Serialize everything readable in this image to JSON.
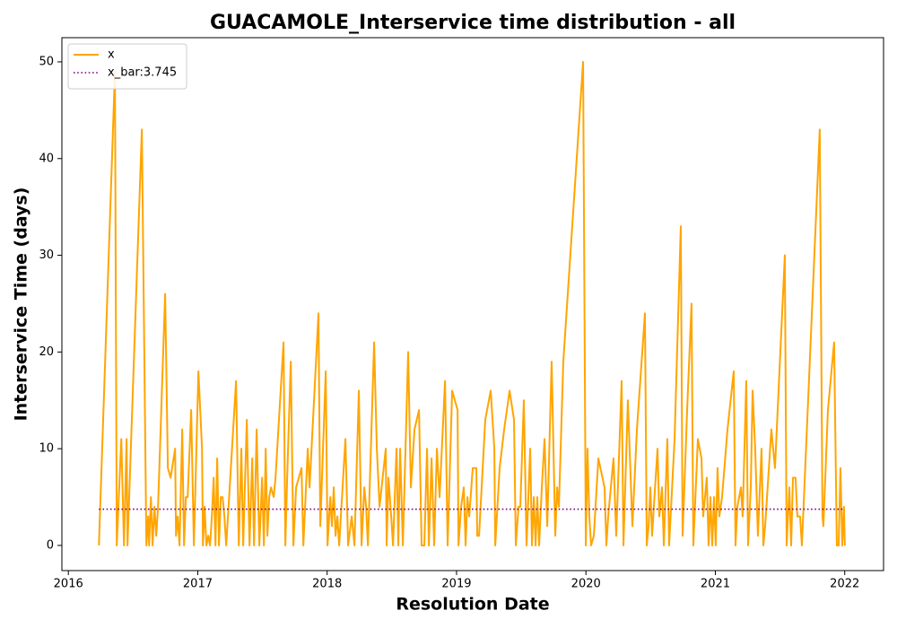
{
  "chart_data": {
    "type": "line",
    "title": "GUACAMOLE_Interservice time distribution - all",
    "x_label": "Resolution Date",
    "y_label": "Interservice Time (days)",
    "xlim": [
      2015.95,
      2022.3
    ],
    "ylim": [
      -2.6,
      52.5
    ],
    "xticks": [
      2016,
      2017,
      2018,
      2019,
      2020,
      2021,
      2022
    ],
    "yticks": [
      0,
      10,
      20,
      30,
      40,
      50
    ],
    "grid": false,
    "legend": "upper left",
    "series": [
      {
        "name": "x",
        "color": "#ffa500",
        "style": "solid",
        "x": [
          2016.236,
          2016.36,
          2016.374,
          2016.409,
          2016.43,
          2016.45,
          2016.457,
          2016.568,
          2016.603,
          2016.617,
          2016.624,
          2016.638,
          2016.651,
          2016.665,
          2016.679,
          2016.693,
          2016.748,
          2016.769,
          2016.79,
          2016.825,
          2016.832,
          2016.845,
          2016.859,
          2016.88,
          2016.894,
          2016.908,
          2016.922,
          2016.949,
          2016.97,
          2017.005,
          2017.033,
          2017.04,
          2017.053,
          2017.067,
          2017.081,
          2017.095,
          2017.109,
          2017.123,
          2017.137,
          2017.15,
          2017.164,
          2017.178,
          2017.192,
          2017.206,
          2017.22,
          2017.296,
          2017.317,
          2017.337,
          2017.351,
          2017.379,
          2017.4,
          2017.421,
          2017.435,
          2017.455,
          2017.476,
          2017.497,
          2017.511,
          2017.525,
          2017.538,
          2017.552,
          2017.566,
          2017.587,
          2017.601,
          2017.663,
          2017.677,
          2017.691,
          2017.719,
          2017.739,
          2017.76,
          2017.802,
          2017.816,
          2017.85,
          2017.864,
          2017.933,
          2017.947,
          2017.989,
          2018.003,
          2018.024,
          2018.037,
          2018.051,
          2018.065,
          2018.079,
          2018.093,
          2018.141,
          2018.162,
          2018.19,
          2018.211,
          2018.245,
          2018.266,
          2018.287,
          2018.301,
          2018.315,
          2018.363,
          2018.384,
          2018.405,
          2018.453,
          2018.46,
          2018.474,
          2018.495,
          2018.509,
          2018.536,
          2018.55,
          2018.564,
          2018.585,
          2018.626,
          2018.647,
          2018.675,
          2018.71,
          2018.73,
          2018.751,
          2018.772,
          2018.786,
          2018.807,
          2018.827,
          2018.848,
          2018.869,
          2018.911,
          2018.931,
          2018.966,
          2019.008,
          2019.015,
          2019.035,
          2019.056,
          2019.07,
          2019.084,
          2019.098,
          2019.125,
          2019.153,
          2019.16,
          2019.174,
          2019.222,
          2019.264,
          2019.292,
          2019.299,
          2019.333,
          2019.368,
          2019.41,
          2019.444,
          2019.458,
          2019.479,
          2019.493,
          2019.52,
          2019.541,
          2019.569,
          2019.583,
          2019.597,
          2019.611,
          2019.624,
          2019.638,
          2019.659,
          2019.68,
          2019.701,
          2019.735,
          2019.763,
          2019.777,
          2019.791,
          2019.825,
          2019.978,
          2019.999,
          2020.012,
          2020.026,
          2020.04,
          2020.061,
          2020.096,
          2020.144,
          2020.158,
          2020.172,
          2020.213,
          2020.234,
          2020.276,
          2020.29,
          2020.324,
          2020.359,
          2020.394,
          2020.456,
          2020.47,
          2020.484,
          2020.498,
          2020.511,
          2020.553,
          2020.567,
          2020.588,
          2020.602,
          2020.629,
          2020.643,
          2020.685,
          2020.733,
          2020.747,
          2020.782,
          2020.816,
          2020.83,
          2020.865,
          2020.893,
          2020.906,
          2020.934,
          2020.948,
          2020.962,
          2020.976,
          2020.99,
          2021.003,
          2021.017,
          2021.031,
          2021.052,
          2021.094,
          2021.142,
          2021.156,
          2021.17,
          2021.198,
          2021.211,
          2021.239,
          2021.253,
          2021.274,
          2021.288,
          2021.308,
          2021.329,
          2021.357,
          2021.371,
          2021.385,
          2021.433,
          2021.461,
          2021.537,
          2021.551,
          2021.572,
          2021.586,
          2021.6,
          2021.62,
          2021.634,
          2021.655,
          2021.669,
          2021.807,
          2021.828,
          2021.835,
          2021.87,
          2021.918,
          2021.939,
          2021.953,
          2021.967,
          2021.981,
          2021.994,
          2022.001
        ],
        "values": [
          0,
          49,
          0,
          11,
          0,
          11,
          0,
          43,
          0,
          3,
          0,
          5,
          0,
          4,
          1,
          4,
          26,
          8,
          7,
          10,
          1,
          3,
          0,
          12,
          0,
          5,
          5,
          14,
          0,
          18,
          10,
          0,
          4,
          0,
          1,
          0,
          3,
          7,
          0,
          9,
          0,
          5,
          5,
          3,
          0,
          17,
          0,
          10,
          0,
          13,
          0,
          9,
          0,
          12,
          0,
          7,
          0,
          10,
          1,
          5,
          6,
          5,
          7,
          21,
          0,
          7,
          19,
          0,
          6,
          8,
          0,
          10,
          6,
          24,
          2,
          18,
          0,
          5,
          2,
          6,
          1,
          3,
          0,
          11,
          0,
          3,
          0,
          16,
          0,
          6,
          4,
          0,
          21,
          10,
          4,
          10,
          0,
          7,
          3,
          0,
          10,
          0,
          10,
          0,
          20,
          6,
          12,
          14,
          0,
          0,
          10,
          0,
          9,
          0,
          10,
          5,
          17,
          0,
          16,
          14,
          0,
          4,
          6,
          0,
          5,
          3,
          8,
          8,
          1,
          1,
          13,
          16,
          10,
          0,
          8,
          12,
          16,
          13,
          0,
          4,
          4,
          15,
          0,
          10,
          0,
          5,
          0,
          5,
          0,
          6,
          11,
          2,
          19,
          1,
          6,
          4,
          19,
          50,
          0,
          10,
          3,
          0,
          1,
          9,
          6,
          0,
          3,
          9,
          1,
          17,
          0,
          15,
          2,
          12,
          24,
          0,
          2,
          6,
          1,
          10,
          3,
          6,
          0,
          11,
          0,
          11,
          33,
          1,
          14,
          25,
          0,
          11,
          9,
          3,
          7,
          0,
          5,
          0,
          5,
          0,
          8,
          3,
          5,
          12,
          18,
          0,
          4,
          6,
          3,
          17,
          0,
          6,
          16,
          10,
          1,
          10,
          0,
          2,
          12,
          8,
          30,
          0,
          6,
          0,
          7,
          7,
          3,
          3,
          0,
          43,
          3,
          2,
          14,
          21,
          0,
          0,
          8,
          0,
          4,
          0
        ]
      },
      {
        "name": "x_bar:3.745",
        "color": "#800080",
        "style": "dotted",
        "x": [
          2016.236,
          2022.001
        ],
        "values": [
          3.745,
          3.745
        ]
      }
    ]
  }
}
